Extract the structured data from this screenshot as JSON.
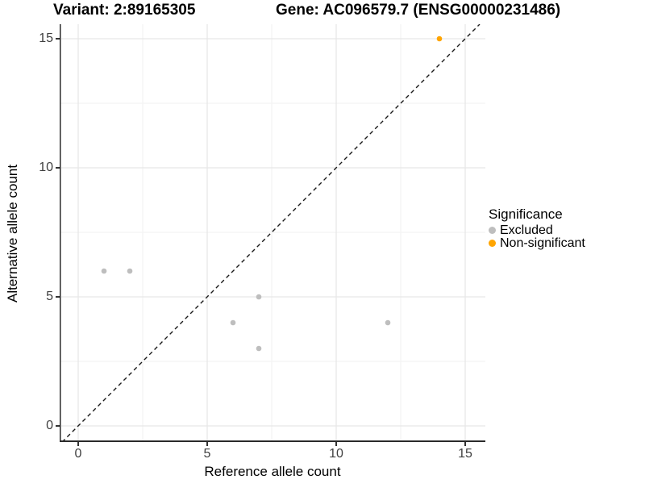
{
  "title": {
    "variant": "Variant: 2:89165305",
    "gene": "Gene: AC096579.7 (ENSG00000231486)"
  },
  "axes": {
    "x_label": "Reference allele count",
    "y_label": "Alternative allele count"
  },
  "legend": {
    "title": "Significance",
    "items": [
      {
        "label": "Excluded",
        "color": "#bebebe"
      },
      {
        "label": "Non-significant",
        "color": "#ffa500"
      }
    ]
  },
  "colors": {
    "excluded": "#bebebe",
    "non_significant": "#ffa500",
    "major_grid": "#e6e6e6",
    "minor_grid": "#f2f2f2",
    "axis_line": "#2a2a2a",
    "reference_line": "#1a1a1a"
  },
  "chart_data": {
    "type": "scatter",
    "title": "Variant: 2:89165305   Gene: AC096579.7 (ENSG00000231486)",
    "xlabel": "Reference allele count",
    "ylabel": "Alternative allele count",
    "xlim": [
      -0.75,
      15.75
    ],
    "ylim": [
      -0.75,
      15.75
    ],
    "x_ticks": [
      0,
      5,
      10,
      15
    ],
    "y_ticks": [
      0,
      5,
      10,
      15
    ],
    "x_minor_ticks": [
      2.5,
      7.5,
      12.5
    ],
    "y_minor_ticks": [
      2.5,
      7.5,
      12.5
    ],
    "grid": true,
    "legend_position": "right",
    "series": [
      {
        "name": "Excluded",
        "color": "#bebebe",
        "points": [
          [
            1,
            6
          ],
          [
            2,
            6
          ],
          [
            6,
            4
          ],
          [
            7,
            5
          ],
          [
            7,
            3
          ],
          [
            12,
            4
          ]
        ]
      },
      {
        "name": "Non-significant",
        "color": "#ffa500",
        "points": [
          [
            14,
            15
          ]
        ]
      }
    ],
    "reference_line": {
      "type": "identity",
      "style": "dashed"
    }
  }
}
